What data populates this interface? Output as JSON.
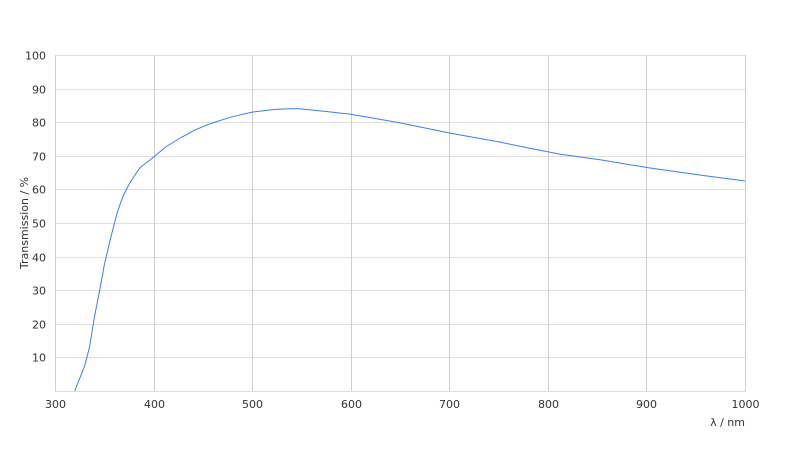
{
  "chart_data": {
    "type": "line",
    "title": "",
    "xlabel": "λ / nm",
    "ylabel": "Transmission / %",
    "xlim": [
      300,
      1000
    ],
    "ylim": [
      0,
      100
    ],
    "xticks": [
      300,
      400,
      500,
      600,
      700,
      800,
      900,
      1000
    ],
    "yticks": [
      10,
      20,
      30,
      40,
      50,
      60,
      70,
      80,
      90,
      100
    ],
    "grid": true,
    "line_color": "#3b7ff0",
    "series": [
      {
        "x": [
          320,
          330,
          335,
          340,
          345,
          350,
          356,
          363,
          369,
          376,
          386,
          400,
          412,
          427,
          442,
          457,
          478,
          500,
          523,
          538,
          548,
          574,
          599,
          625,
          650,
          675,
          700,
          751,
          772,
          812,
          853,
          903,
          954,
          1000
        ],
        "y": [
          0,
          7.4,
          13,
          22,
          29.5,
          37.5,
          45,
          53,
          58,
          62,
          66.4,
          69.6,
          72.6,
          75.3,
          77.7,
          79.5,
          81.5,
          83,
          83.8,
          84,
          84,
          83.2,
          82.4,
          81.1,
          79.8,
          78.3,
          76.8,
          74.1,
          72.8,
          70.5,
          68.8,
          66.4,
          64.3,
          62.5
        ]
      }
    ]
  }
}
